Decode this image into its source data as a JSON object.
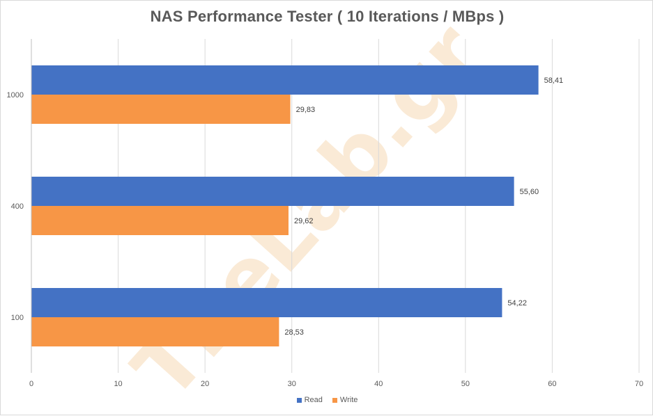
{
  "chart_data": {
    "type": "bar",
    "orientation": "horizontal",
    "title": "NAS Performance Tester ( 10 Iterations / MBps )",
    "categories": [
      "1000",
      "400",
      "100"
    ],
    "series": [
      {
        "name": "Read",
        "color": "#4472c4",
        "values": [
          58.41,
          55.6,
          54.22
        ],
        "labels": [
          "58,41",
          "55,60",
          "54,22"
        ]
      },
      {
        "name": "Write",
        "color": "#f79646",
        "values": [
          29.83,
          29.62,
          28.53
        ],
        "labels": [
          "29,83",
          "29,62",
          "28,53"
        ]
      }
    ],
    "xlim": [
      0,
      70
    ],
    "xticks": [
      0,
      10,
      20,
      30,
      40,
      50,
      60,
      70
    ],
    "grid": true,
    "legend_position": "bottom",
    "watermark": "TheLab.gr"
  }
}
